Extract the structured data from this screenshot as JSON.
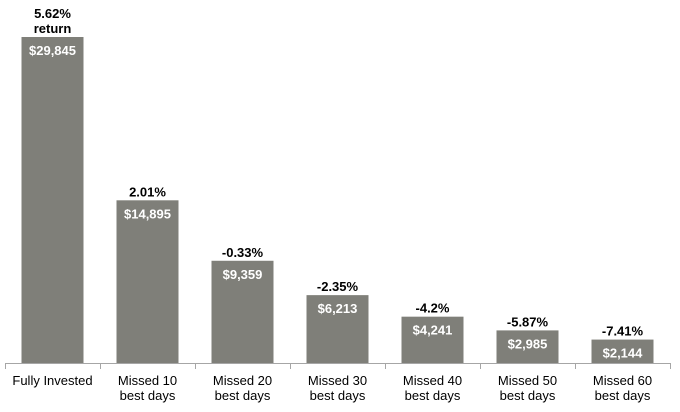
{
  "chart_data": {
    "type": "bar",
    "categories": [
      [
        "Fully Invested"
      ],
      [
        "Missed 10",
        "best days"
      ],
      [
        "Missed 20",
        "best days"
      ],
      [
        "Missed 30",
        "best days"
      ],
      [
        "Missed 40",
        "best days"
      ],
      [
        "Missed 50",
        "best days"
      ],
      [
        "Missed 60",
        "best days"
      ]
    ],
    "values": [
      29845,
      14895,
      9359,
      6213,
      4241,
      2985,
      2144
    ],
    "value_labels": [
      "$29,845",
      "$14,895",
      "$9,359",
      "$6,213",
      "$4,241",
      "$2,985",
      "$2,144"
    ],
    "return_labels": [
      [
        "5.62%",
        "return"
      ],
      [
        "2.01%"
      ],
      [
        "-0.33%"
      ],
      [
        "-2.35%"
      ],
      [
        "-4.2%"
      ],
      [
        "-5.87%"
      ],
      [
        "-7.41%"
      ]
    ],
    "ylim": [
      0,
      29845
    ],
    "grid": false,
    "bar_color": "#7f7f79",
    "axis_color": "#a6a6a6"
  }
}
